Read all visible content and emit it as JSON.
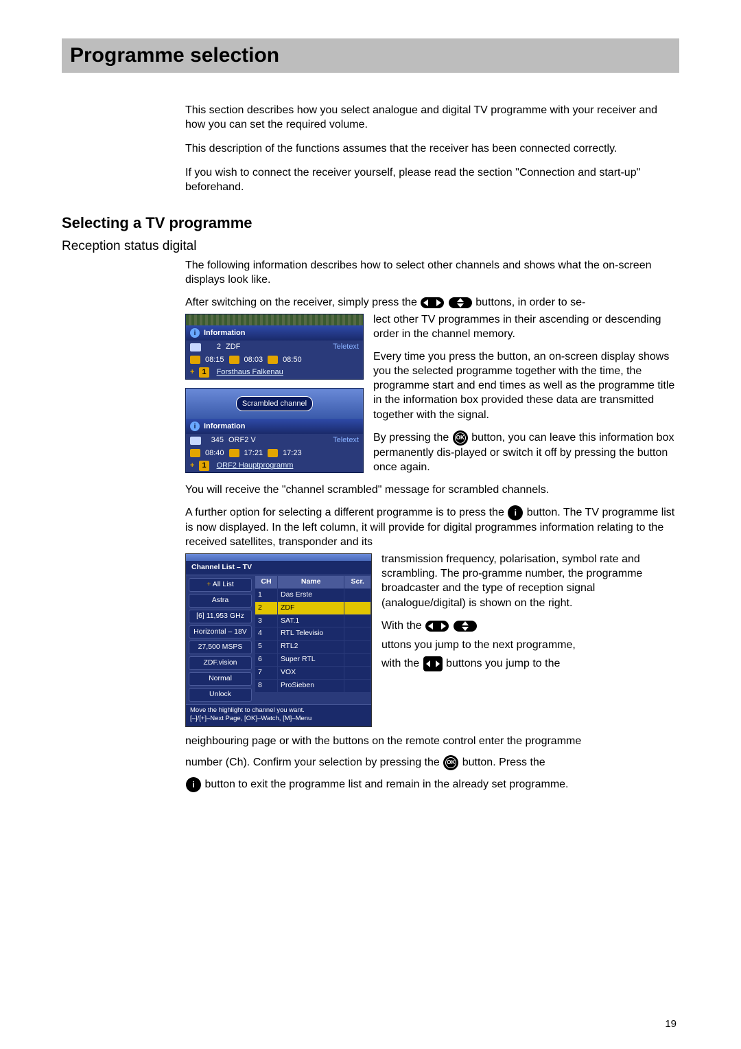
{
  "page_number": "19",
  "colors": {
    "title_bg": "#bdbdbd",
    "mock_bg": "#2a3a7a",
    "mock_accent": "#e2a500",
    "highlight_row": "#e2c500"
  },
  "title_bar": {
    "title": "Programme selection"
  },
  "intro": {
    "p1": "This section describes how you select analogue and digital TV programme with your receiver and how you can set the required volume.",
    "p2": "This description of the functions assumes that the receiver has been connected correctly.",
    "p3": " If you wish to connect the receiver yourself, please read the section \"Connection and start-up\" beforehand."
  },
  "section": {
    "heading": "Selecting a TV programme",
    "sub1": "Reception status digital",
    "p1": "The following information describes how to select other channels and shows what the on-screen displays look like.",
    "sw_pre": "After switching on the receiver, simply press the ",
    "sw_post": "buttons, in order to se-",
    "p_rest1": "lect other TV programmes in their ascending or descending order in the channel memory.",
    "p2": "Every time you press the button, an on-screen display shows you the selected programme together with the time, the programme start and end times as well as the programme title in the information box provided these data are transmitted together with the signal.",
    "p3_pre": "By pressing the ",
    "p3_post": "button, you can leave this information box permanently dis-played or switch it off by pressing the button once again.",
    "p4": "You will receive the \"channel scrambled\" message for scrambled channels.",
    "opt_pre": "A further option for selecting a different programme is to press the ",
    "opt_post": " button.  The TV programme list is now displayed.  In the left column, it will provide for digital programmes information relating to the received satellites, transponder and its",
    "right1": "transmission frequency, polarisation, symbol rate and  scrambling.  The pro-gramme number, the programme broadcaster and the type of reception signal (analogue/digital) is shown on the right.",
    "with_pre": "With  the ",
    "with_mid": "uttons you jump to the next programme,",
    "with2_pre": "with the ",
    "with2_post": "buttons you jump to the",
    "tail1_a": "neighbouring page or with the buttons on the remote control enter the programme",
    "tail1_b_pre": "number (Ch).  Confirm your selection by pressing the ",
    "tail1_b_post": "button. Press the",
    "tail2": "button to exit the programme list and remain in the already set programme."
  },
  "mock1": {
    "header": "Information",
    "ch_no": "2",
    "ch_name": "ZDF",
    "teletext": "Teletext",
    "t1": "08:15",
    "t2": "08:03",
    "t3": "08:50",
    "pill": "1",
    "programme": "Forsthaus Falkenau"
  },
  "mock2": {
    "scrambled": "Scrambled channel",
    "header": "Information",
    "ch_no": "345",
    "ch_name": "ORF2 V",
    "teletext": "Teletext",
    "t1": "08:40",
    "t2": "17:21",
    "t3": "17:23",
    "pill": "1",
    "programme": "ORF2 Hauptprogramm"
  },
  "channel_list": {
    "title": "Channel List – TV",
    "left": [
      "All List",
      "Astra",
      "[6] 11,953 GHz",
      "Horizontal – 18V",
      "27,500 MSPS",
      "ZDF.vision",
      "Normal",
      "Unlock"
    ],
    "cols": [
      "CH",
      "Name",
      "Scr."
    ],
    "rows": [
      {
        "ch": "1",
        "name": "Das Erste",
        "hl": false
      },
      {
        "ch": "2",
        "name": "ZDF",
        "hl": true
      },
      {
        "ch": "3",
        "name": "SAT.1",
        "hl": false
      },
      {
        "ch": "4",
        "name": "RTL Televisio",
        "hl": false
      },
      {
        "ch": "5",
        "name": "RTL2",
        "hl": false
      },
      {
        "ch": "6",
        "name": "Super RTL",
        "hl": false
      },
      {
        "ch": "7",
        "name": "VOX",
        "hl": false
      },
      {
        "ch": "8",
        "name": "ProSieben",
        "hl": false
      }
    ],
    "foot1": "Move the highlight to channel you want.",
    "foot2": "[–]/[+]–Next Page, [OK]–Watch, [M]–Menu"
  }
}
